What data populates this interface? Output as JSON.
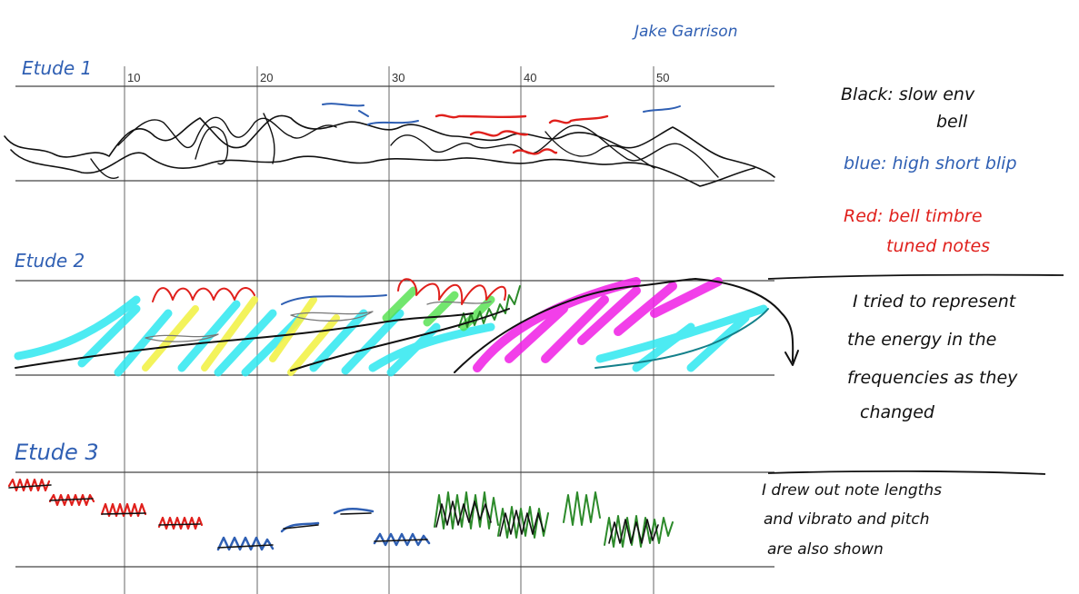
{
  "author": "Jake Garrison",
  "timeline": {
    "ticks": [
      "10",
      "20",
      "30",
      "40",
      "50"
    ]
  },
  "etudes": [
    {
      "title": "Etude 1"
    },
    {
      "title": "Etude 2"
    },
    {
      "title": "Etude 3"
    }
  ],
  "notes": {
    "black_line1": "Black: slow env",
    "black_line2": "bell",
    "blue": "blue: high short blip",
    "red_line1": "Red: bell timbre",
    "red_line2": "tuned notes",
    "etude2_line1": "I tried to represent",
    "etude2_line2": "the energy in the",
    "etude2_line3": "frequencies as they",
    "etude2_line4": "changed",
    "etude3_line1": "I drew out note lengths",
    "etude3_line2": "and vibrato and pitch",
    "etude3_line3": "are also shown"
  },
  "colors": {
    "black": "#111111",
    "blue": "#2f5fb3",
    "red": "#e0201c",
    "cyan": "#2ee8f0",
    "yellow": "#f2f24a",
    "magenta": "#f01ee6",
    "green": "#2c8a2a",
    "teal": "#14808a",
    "gray": "#777777"
  }
}
